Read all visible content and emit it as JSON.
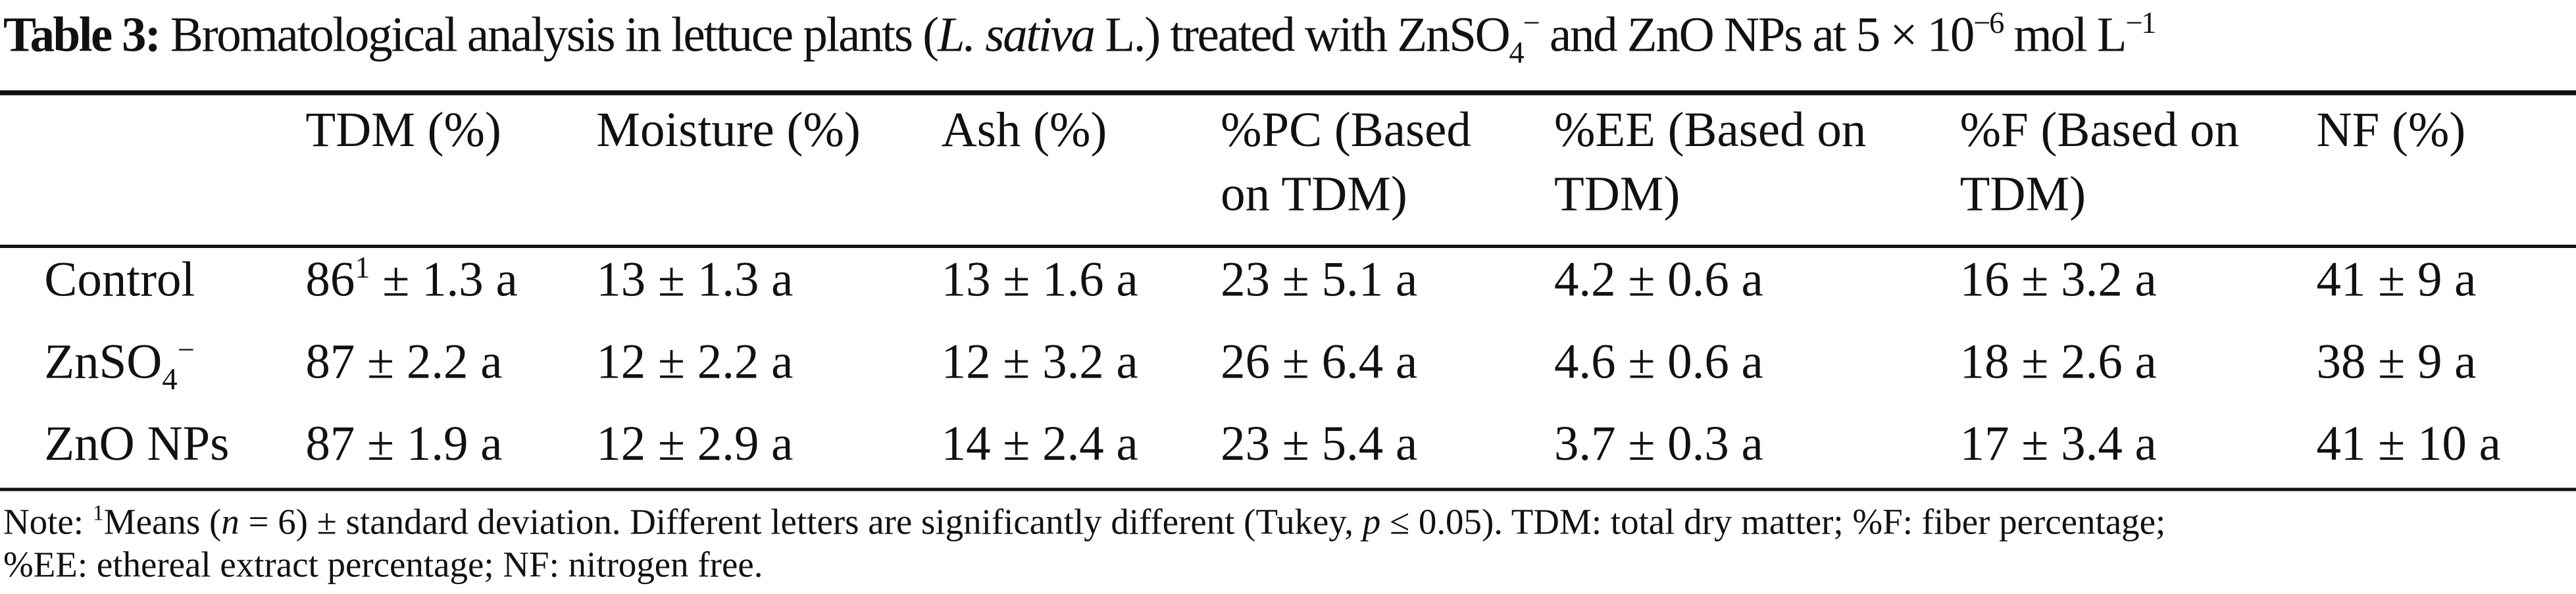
{
  "title": {
    "label": "Table 3:",
    "text": [
      {
        "t": " Bromatological analysis in lettuce plants ("
      },
      {
        "t": "L. sativa",
        "s": "i"
      },
      {
        "t": " L.) treated with ZnSO"
      },
      {
        "t": "4",
        "s": "sub"
      },
      {
        "t": "−",
        "s": "sup"
      },
      {
        "t": " and ZnO NPs at 5 × 10"
      },
      {
        "t": "−6",
        "s": "sup"
      },
      {
        "t": " mol L"
      },
      {
        "t": "−1",
        "s": "sup"
      }
    ]
  },
  "table": {
    "headers": [
      [
        "TDM (%)"
      ],
      [
        "Moisture (%)"
      ],
      [
        "Ash (%)"
      ],
      [
        "%PC (Based",
        "on TDM)"
      ],
      [
        "%EE (Based on",
        "TDM)"
      ],
      [
        "%F (Based on",
        "TDM)"
      ],
      [
        "NF (%)"
      ]
    ],
    "rows": [
      {
        "label": "Control",
        "cells": [
          [
            {
              "t": "86"
            },
            {
              "t": "1",
              "s": "sup"
            },
            {
              "t": " ± 1.3 a"
            }
          ],
          "13 ± 1.3 a",
          "13 ± 1.6 a",
          "23 ± 5.1 a",
          "4.2 ± 0.6 a",
          "16 ± 3.2 a",
          "41 ± 9 a"
        ]
      },
      {
        "label": [
          {
            "t": "ZnSO"
          },
          {
            "t": "4",
            "s": "sub"
          },
          {
            "t": "−",
            "s": "sup"
          }
        ],
        "cells": [
          "87 ± 2.2 a",
          "12 ± 2.2 a",
          "12 ± 3.2 a",
          "26 ± 6.4 a",
          "4.6 ± 0.6 a",
          "18 ± 2.6 a",
          "38 ± 9 a"
        ]
      },
      {
        "label": "ZnO NPs",
        "cells": [
          "87 ± 1.9 a",
          "12 ± 2.9 a",
          "14 ± 2.4 a",
          "23 ± 5.4 a",
          "3.7 ± 0.3 a",
          "17 ± 3.4 a",
          "41 ± 10 a"
        ]
      }
    ]
  },
  "note": [
    [
      {
        "t": "Note: "
      },
      {
        "t": "1",
        "s": "sup"
      },
      {
        "t": "Means ("
      },
      {
        "t": "n",
        "s": "i"
      },
      {
        "t": " = 6) ± standard deviation. Different letters are significantly different (Tukey, "
      },
      {
        "t": "p",
        "s": "i"
      },
      {
        "t": " ≤ 0.05). TDM: total dry matter; %F: fiber percentage;"
      }
    ],
    [
      {
        "t": "%EE: ethereal extract percentage; NF: nitrogen free."
      }
    ]
  ]
}
